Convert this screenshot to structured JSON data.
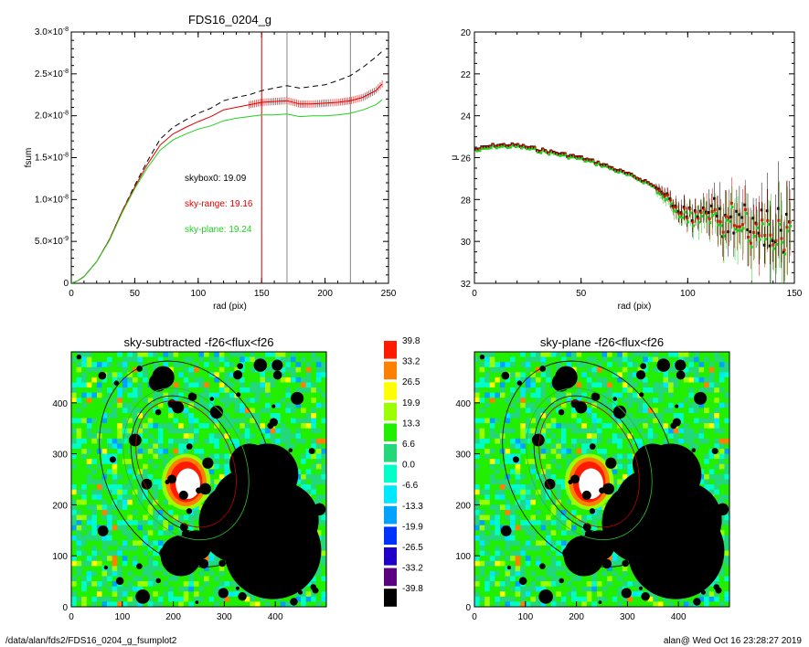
{
  "chart_data": [
    {
      "type": "line",
      "title": "FDS16_0204_g",
      "xlabel": "rad (pix)",
      "ylabel": "fsum",
      "xlim": [
        0,
        250
      ],
      "ylim": [
        0,
        3e-08
      ],
      "x_ticks": [
        "0",
        "50",
        "100",
        "150",
        "200",
        "250"
      ],
      "y_ticks": [
        {
          "mant": "0",
          "exp": ""
        },
        {
          "mant": "5.0×10",
          "exp": "-9"
        },
        {
          "mant": "1.0×10",
          "exp": "-8"
        },
        {
          "mant": "1.5×10",
          "exp": "-8"
        },
        {
          "mant": "2.0×10",
          "exp": "-8"
        },
        {
          "mant": "2.5×10",
          "exp": "-8"
        },
        {
          "mant": "3.0×10",
          "exp": "-8"
        }
      ],
      "grid": false,
      "vlines": [
        {
          "x": 150,
          "color": "#d40000"
        },
        {
          "x": 170,
          "color": "#888888"
        },
        {
          "x": 220,
          "color": "#888888"
        }
      ],
      "annotations": [
        {
          "text": "skybox0: 19.09",
          "color": "#000000"
        },
        {
          "text": "sky-range: 19.16",
          "color": "#e00000"
        },
        {
          "text": "sky-plane: 19.24",
          "color": "#1fd01f"
        }
      ],
      "x": [
        0,
        5,
        10,
        20,
        30,
        40,
        50,
        60,
        70,
        80,
        90,
        100,
        110,
        120,
        130,
        140,
        150,
        160,
        170,
        180,
        190,
        200,
        210,
        220,
        230,
        240,
        245
      ],
      "series": [
        {
          "color": "#000000",
          "dash": true,
          "values": [
            0,
            3e-10,
            8e-10,
            2.6e-09,
            5.2e-09,
            8.6e-09,
            1.17e-08,
            1.46e-08,
            1.72e-08,
            1.86e-08,
            1.95e-08,
            2.03e-08,
            2.09e-08,
            2.18e-08,
            2.22e-08,
            2.25e-08,
            2.3e-08,
            2.33e-08,
            2.36e-08,
            2.33e-08,
            2.35e-08,
            2.37e-08,
            2.42e-08,
            2.48e-08,
            2.58e-08,
            2.7e-08,
            2.77e-08
          ]
        },
        {
          "color": "#e00000",
          "dash": false,
          "errorbars": true,
          "values": [
            0,
            3e-10,
            8e-10,
            2.6e-09,
            5.2e-09,
            8.6e-09,
            1.15e-08,
            1.42e-08,
            1.65e-08,
            1.78e-08,
            1.86e-08,
            1.93e-08,
            1.99e-08,
            2.07e-08,
            2.1e-08,
            2.13e-08,
            2.16e-08,
            2.17e-08,
            2.18e-08,
            2.14e-08,
            2.14e-08,
            2.15e-08,
            2.16e-08,
            2.18e-08,
            2.22e-08,
            2.3e-08,
            2.38e-08
          ]
        },
        {
          "color": "#1fd01f",
          "dash": false,
          "values": [
            0,
            3e-10,
            8e-10,
            2.6e-09,
            5.1e-09,
            8.4e-09,
            1.13e-08,
            1.38e-08,
            1.59e-08,
            1.71e-08,
            1.78e-08,
            1.84e-08,
            1.88e-08,
            1.94e-08,
            1.97e-08,
            1.99e-08,
            2.01e-08,
            2.01e-08,
            2.02e-08,
            1.99e-08,
            2e-08,
            2e-08,
            2.01e-08,
            2.03e-08,
            2.07e-08,
            2.13e-08,
            2.19e-08
          ]
        }
      ]
    },
    {
      "type": "scatter",
      "title": "",
      "xlabel": "rad (pix)",
      "ylabel": "μ",
      "xlim": [
        0,
        150
      ],
      "ylim": [
        32,
        20
      ],
      "x_ticks": [
        "0",
        "50",
        "100",
        "150"
      ],
      "y_ticks": [
        "20",
        "22",
        "24",
        "26",
        "28",
        "30",
        "32"
      ],
      "grid": false,
      "profile": {
        "x": [
          1,
          10,
          20,
          30,
          40,
          50,
          60,
          70,
          75,
          80,
          85,
          90,
          95,
          100,
          105,
          110,
          115,
          120,
          125,
          130,
          135,
          140,
          145,
          150
        ],
        "mu": [
          25.6,
          25.4,
          25.4,
          25.6,
          25.8,
          26.0,
          26.3,
          26.7,
          26.9,
          27.1,
          27.4,
          27.7,
          28.3,
          28.5,
          28.8,
          28.4,
          28.9,
          28.4,
          28.7,
          29.1,
          28.7,
          29.0,
          28.8,
          28.2
        ],
        "series_colors": [
          "#000000",
          "#e00000",
          "#1fd01f"
        ]
      }
    },
    {
      "type": "heatmap",
      "title": "sky-subtracted -f26<flux<f26",
      "x_ticks": [
        "0",
        "100",
        "200",
        "300",
        "400"
      ],
      "y_ticks": [
        "0",
        "100",
        "200",
        "300",
        "400"
      ],
      "xlim": [
        0,
        500
      ],
      "ylim": [
        0,
        500
      ]
    },
    {
      "type": "heatmap",
      "title": "sky-plane -f26<flux<f26",
      "x_ticks": [
        "0",
        "100",
        "200",
        "300",
        "400"
      ],
      "y_ticks": [
        "0",
        "100",
        "200",
        "300",
        "400"
      ],
      "xlim": [
        0,
        500
      ],
      "ylim": [
        0,
        500
      ]
    }
  ],
  "colorbar": {
    "labels": [
      "39.8",
      "33.2",
      "26.5",
      "19.9",
      "13.3",
      "6.6",
      "0.0",
      "-6.6",
      "-13.3",
      "-19.9",
      "-26.5",
      "-33.2",
      "-39.8"
    ],
    "colors": [
      "#ff1a00",
      "#ff7f00",
      "#ffff00",
      "#9cff00",
      "#22ee00",
      "#22d87a",
      "#00ffc8",
      "#00e8ff",
      "#00a2ff",
      "#0033ff",
      "#2000c8",
      "#5a0080",
      "#000000"
    ]
  },
  "footer": {
    "left": "/data/alan/fds2/FDS16_0204_g_fsumplot2",
    "right": "alan@  Wed Oct 16 23:28:27 2019"
  }
}
